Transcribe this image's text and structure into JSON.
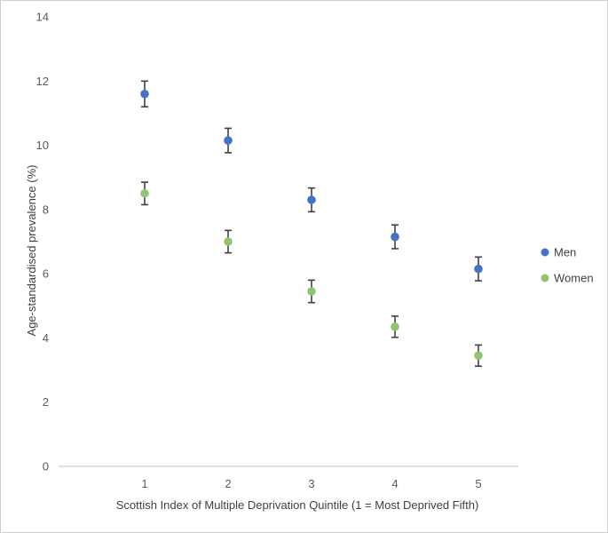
{
  "chart_data": {
    "type": "scatter",
    "categories": [
      "1",
      "2",
      "3",
      "4",
      "5"
    ],
    "x": [
      1,
      2,
      3,
      4,
      5
    ],
    "xlabel": "Scottish Index of Multiple Deprivation Quintile (1 = Most Deprived Fifth)",
    "ylabel": "Age-standardised prevalence (%)",
    "ylim": [
      0,
      14
    ],
    "yticks": [
      "0",
      "2",
      "4",
      "6",
      "8",
      "10",
      "12",
      "14"
    ],
    "grid": false,
    "legend_position": "right",
    "series": [
      {
        "name": "Men",
        "color": "#4472c4",
        "values": [
          11.6,
          10.15,
          8.3,
          7.15,
          6.15
        ],
        "error": [
          0.4,
          0.38,
          0.37,
          0.37,
          0.37
        ]
      },
      {
        "name": "Women",
        "color": "#92c36f",
        "values": [
          8.5,
          7.0,
          5.45,
          4.35,
          3.45
        ],
        "error": [
          0.35,
          0.35,
          0.35,
          0.33,
          0.33
        ]
      }
    ]
  }
}
